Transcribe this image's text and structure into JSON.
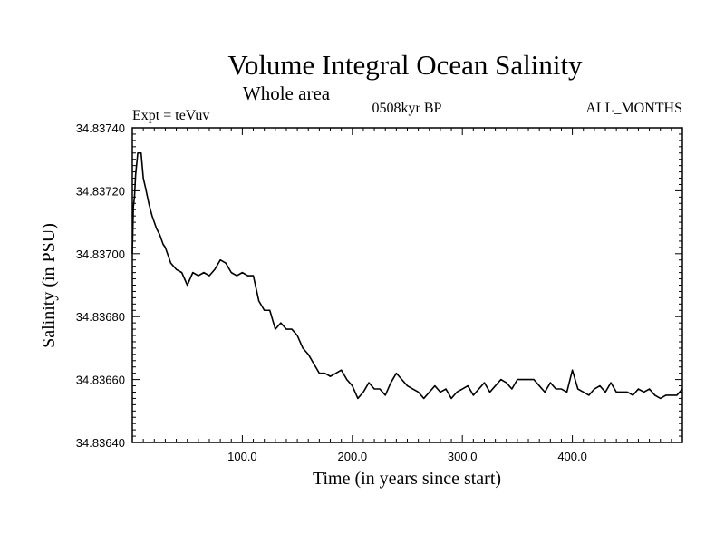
{
  "chart_data": {
    "type": "line",
    "title": "Volume Integral Ocean Salinity",
    "subtitle": "Whole area",
    "experiment_label": "Expt = teVuv",
    "period_label": "0508kyr BP",
    "months_label": "ALL_MONTHS",
    "xlabel": "Time (in years since start)",
    "ylabel": "Salinity (in PSU)",
    "xlim": [
      0,
      500
    ],
    "ylim": [
      34.8364,
      34.8374
    ],
    "x_ticks": [
      100,
      200,
      300,
      400
    ],
    "x_tick_labels": [
      "100.0",
      "200.0",
      "300.0",
      "400.0"
    ],
    "y_ticks": [
      34.8364,
      34.8366,
      34.8368,
      34.837,
      34.8372,
      34.8374
    ],
    "y_tick_labels": [
      "34.83640",
      "34.83660",
      "34.83680",
      "34.83700",
      "34.83720",
      "34.83740"
    ],
    "series": [
      {
        "name": "Salinity",
        "color": "#000000",
        "x": [
          0,
          1,
          2,
          3,
          5,
          8,
          10,
          12,
          15,
          18,
          22,
          25,
          28,
          30,
          35,
          40,
          45,
          50,
          55,
          60,
          65,
          70,
          75,
          80,
          85,
          90,
          95,
          100,
          105,
          110,
          115,
          120,
          125,
          130,
          135,
          140,
          145,
          150,
          155,
          160,
          165,
          170,
          175,
          180,
          185,
          190,
          195,
          200,
          205,
          210,
          215,
          220,
          225,
          230,
          235,
          240,
          245,
          250,
          255,
          260,
          265,
          270,
          275,
          280,
          285,
          290,
          295,
          300,
          305,
          310,
          315,
          320,
          325,
          330,
          335,
          340,
          345,
          350,
          355,
          360,
          365,
          370,
          375,
          380,
          385,
          390,
          395,
          400,
          405,
          410,
          415,
          420,
          425,
          430,
          435,
          440,
          445,
          450,
          455,
          460,
          465,
          470,
          475,
          480,
          485,
          490,
          495,
          500
        ],
        "values": [
          34.837,
          34.83715,
          34.83718,
          34.83725,
          34.83732,
          34.83732,
          34.83724,
          34.83721,
          34.83716,
          34.83712,
          34.83708,
          34.83706,
          34.83703,
          34.83702,
          34.83697,
          34.83695,
          34.83694,
          34.8369,
          34.83694,
          34.83693,
          34.83694,
          34.83693,
          34.83695,
          34.83698,
          34.83697,
          34.83694,
          34.83693,
          34.83694,
          34.83693,
          34.83693,
          34.83685,
          34.83682,
          34.83682,
          34.83676,
          34.83678,
          34.83676,
          34.83676,
          34.83674,
          34.8367,
          34.83668,
          34.83665,
          34.83662,
          34.83662,
          34.83661,
          34.83662,
          34.83663,
          34.8366,
          34.83658,
          34.83654,
          34.83656,
          34.83659,
          34.83657,
          34.83657,
          34.83655,
          34.83659,
          34.83662,
          34.8366,
          34.83658,
          34.83657,
          34.83656,
          34.83654,
          34.83656,
          34.83658,
          34.83656,
          34.83657,
          34.83654,
          34.83656,
          34.83657,
          34.83658,
          34.83655,
          34.83657,
          34.83659,
          34.83656,
          34.83658,
          34.8366,
          34.83659,
          34.83657,
          34.8366,
          34.8366,
          34.8366,
          34.8366,
          34.83658,
          34.83656,
          34.83659,
          34.83657,
          34.83657,
          34.83656,
          34.83663,
          34.83657,
          34.83656,
          34.83655,
          34.83657,
          34.83658,
          34.83656,
          34.83659,
          34.83656,
          34.83656,
          34.83656,
          34.83655,
          34.83657,
          34.83656,
          34.83657,
          34.83655,
          34.83654,
          34.83655,
          34.83655,
          34.83655,
          34.83657
        ]
      }
    ]
  }
}
